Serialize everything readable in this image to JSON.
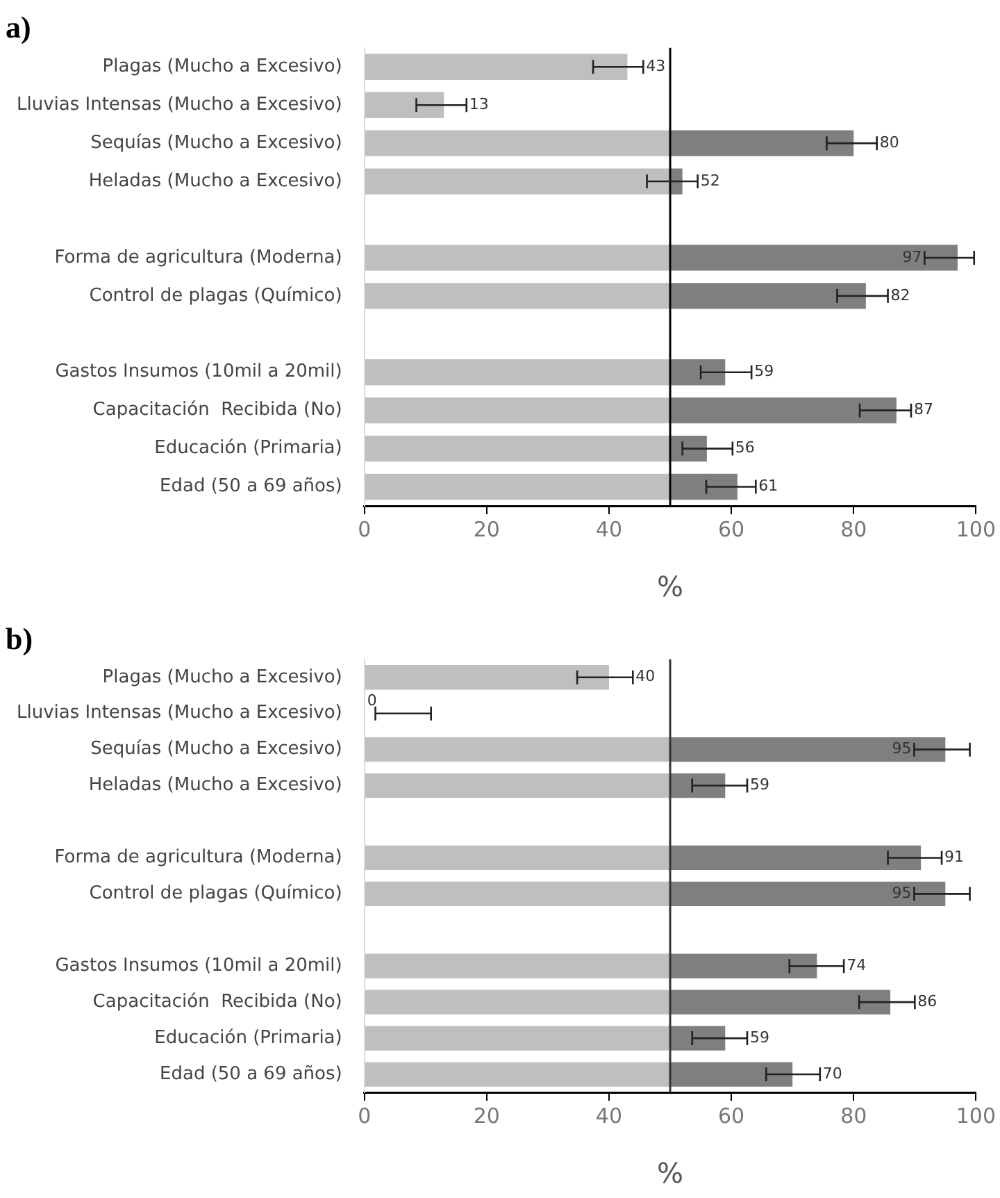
{
  "chart_data": [
    {
      "type": "bar",
      "title": "a)",
      "orientation": "horizontal",
      "stacked": true,
      "xlabel": "%",
      "categories": [
        "Plagas (Mucho a Excesivo)",
        "Lluvias Intensas (Mucho a Excesivo)",
        "Sequías (Mucho a Excesivo)",
        "Heladas (Mucho a Excesivo)",
        null,
        "Forma de agricultura (Moderna)",
        "Control de plagas (Químico)",
        null,
        "Gastos Insumos (10mil a 20mil)",
        "Capacitación  Recibida (No)",
        "Educación (Primaria)",
        "Edad (50 a 69 años)"
      ],
      "series": [
        {
          "color": "#bfbfbf",
          "values": [
            43,
            13,
            50,
            50,
            null,
            50,
            50,
            null,
            50,
            50,
            50,
            50
          ],
          "errors": [
            [
              37.4,
              45.6
            ],
            [
              8.5,
              16.7
            ],
            null,
            null,
            null,
            null,
            null,
            null,
            null,
            null,
            null,
            null
          ]
        },
        {
          "color": "#7f7f7f",
          "values": [
            null,
            null,
            30,
            2,
            null,
            47,
            32,
            null,
            9,
            37,
            6,
            11
          ],
          "errors": [
            null,
            null,
            [
              75.6,
              83.8
            ],
            [
              46.2,
              54.5
            ],
            null,
            [
              91.6,
              99.7
            ],
            [
              77.3,
              85.6
            ],
            null,
            [
              55,
              63.3
            ],
            [
              81,
              89.4
            ],
            [
              52,
              60.2
            ],
            [
              55.9,
              64
            ]
          ]
        }
      ],
      "totals": [
        "43",
        "13",
        "80",
        "52",
        null,
        "97",
        "82",
        null,
        "59",
        "87",
        "56",
        "61"
      ],
      "xlim": [
        0,
        100
      ],
      "xticks": [
        0,
        20,
        40,
        60,
        80,
        100
      ],
      "grid": false,
      "legend": false,
      "ref_lines": [
        {
          "axis": "x",
          "value": 50,
          "color": "#000000"
        }
      ]
    },
    {
      "type": "bar",
      "title": "b)",
      "orientation": "horizontal",
      "stacked": true,
      "xlabel": "%",
      "categories": [
        "Plagas (Mucho a Excesivo)",
        "Lluvias Intensas (Mucho a Excesivo)",
        "Sequías (Mucho a Excesivo)",
        "Heladas (Mucho a Excesivo)",
        null,
        "Forma de agricultura (Moderna)",
        "Control de plagas (Químico)",
        null,
        "Gastos Insumos (10mil a 20mil)",
        "Capacitación  Recibida (No)",
        "Educación (Primaria)",
        "Edad (50 a 69 años)"
      ],
      "series": [
        {
          "color": "#bfbfbf",
          "values": [
            40,
            0,
            50,
            50,
            null,
            50,
            50,
            null,
            50,
            50,
            50,
            50
          ],
          "errors": [
            [
              34.8,
              43.9
            ],
            [
              1.8,
              10.9
            ],
            null,
            null,
            null,
            null,
            null,
            null,
            null,
            null,
            null,
            null
          ]
        },
        {
          "color": "#7f7f7f",
          "values": [
            null,
            null,
            45,
            9,
            null,
            41,
            45,
            null,
            24,
            36,
            9,
            20
          ],
          "errors": [
            null,
            null,
            [
              89.9,
              99
            ],
            [
              53.6,
              62.6
            ],
            null,
            [
              85.6,
              94.4
            ],
            [
              89.9,
              99
            ],
            null,
            [
              69.5,
              78.4
            ],
            [
              80.9,
              90
            ],
            [
              53.6,
              62.6
            ],
            [
              65.7,
              74.5
            ]
          ]
        }
      ],
      "totals": [
        "40",
        "0",
        "95",
        "59",
        null,
        "91",
        "95",
        null,
        "74",
        "86",
        "59",
        "70"
      ],
      "xlim": [
        0,
        100
      ],
      "xticks": [
        0,
        20,
        40,
        60,
        80,
        100
      ],
      "grid": false,
      "legend": false,
      "ref_lines": [
        {
          "axis": "x",
          "value": 50,
          "color": "#333333"
        }
      ]
    }
  ]
}
